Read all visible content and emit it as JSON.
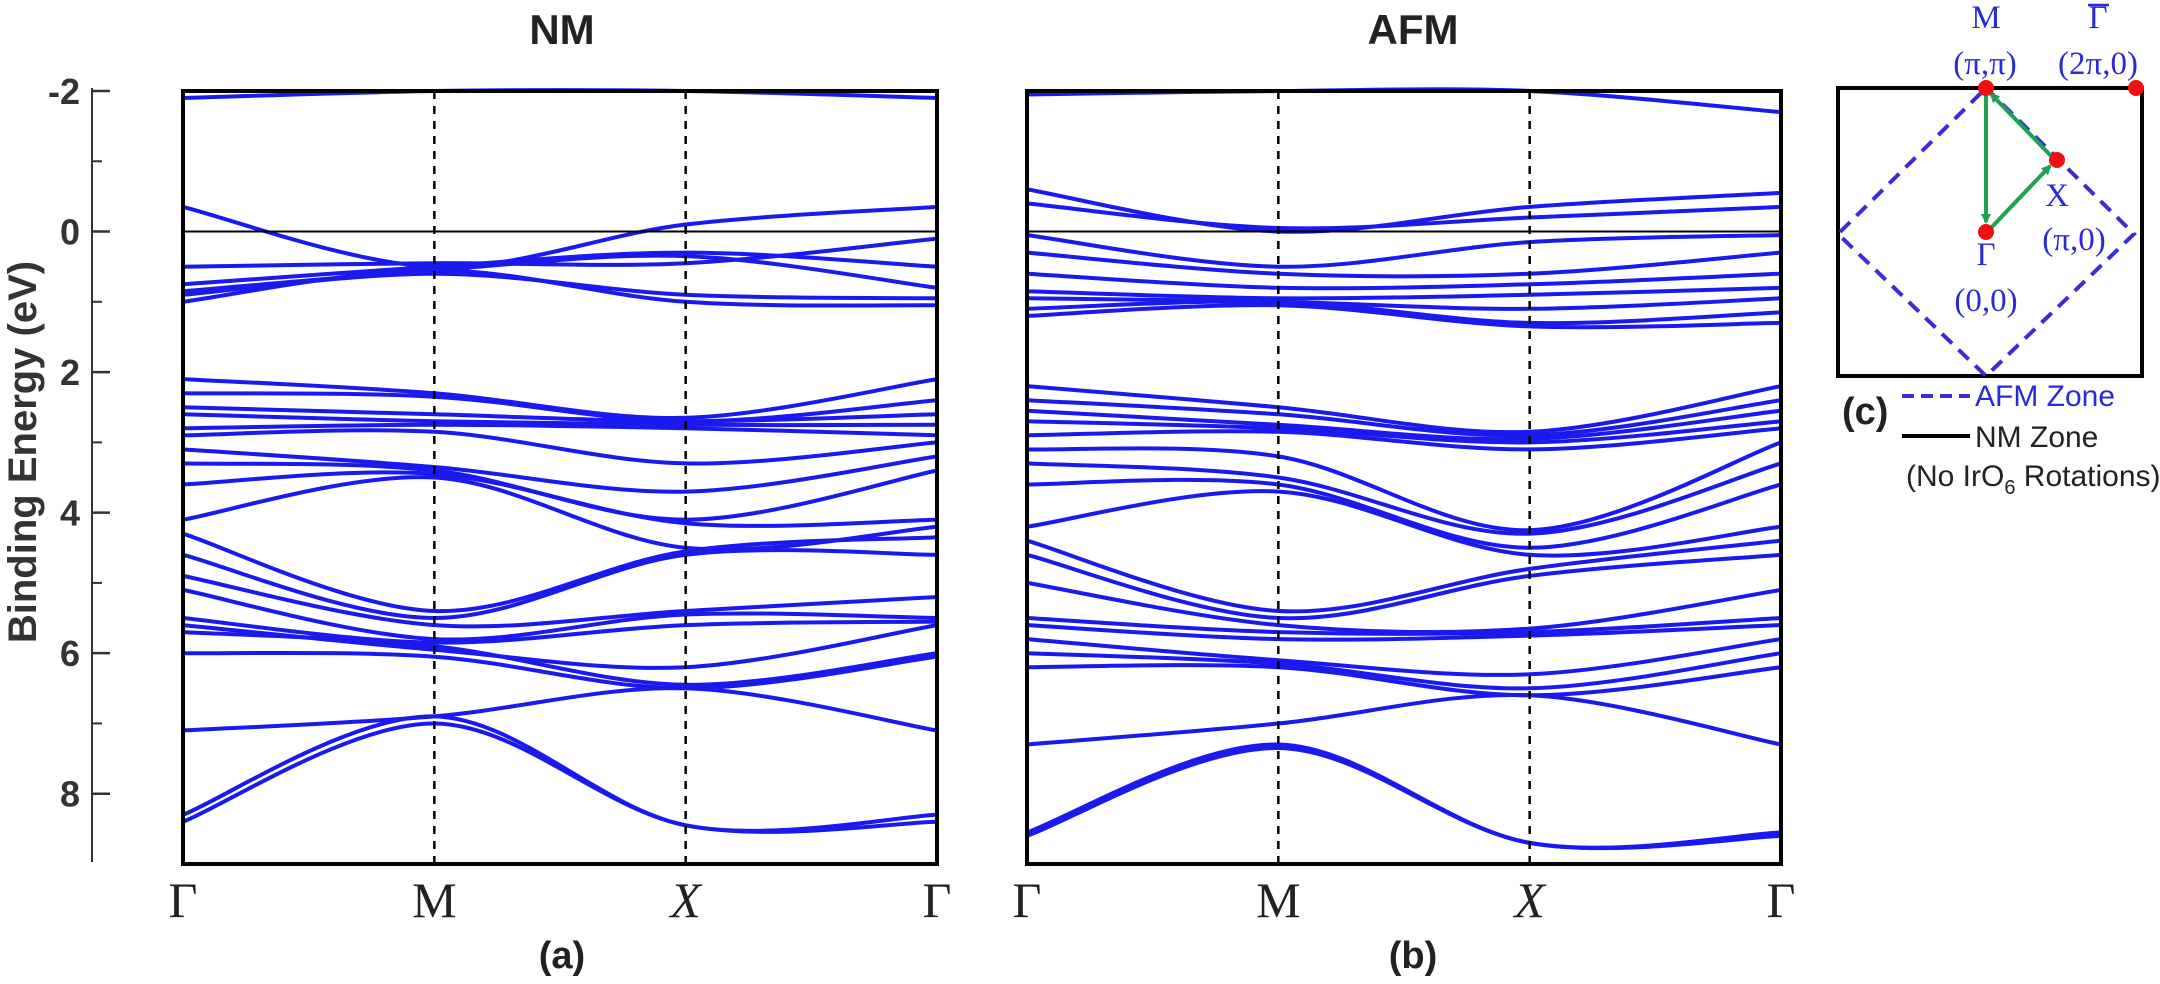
{
  "figure": {
    "panel_c_label": "(c)",
    "brillouin_zone": {
      "points": [
        {
          "id": "M",
          "name": "M",
          "coord": "(π,π)"
        },
        {
          "id": "Gbar",
          "name": "Γ",
          "coord": "(2π,0)"
        },
        {
          "id": "X",
          "name": "X",
          "coord": "(π,0)"
        },
        {
          "id": "G",
          "name": "Γ",
          "coord": "(0,0)"
        }
      ],
      "legend": {
        "afm_zone": "AFM Zone",
        "nm_zone": "NM Zone",
        "nm_note_prefix": "(No IrO",
        "nm_note_sub": "6",
        "nm_note_suffix": " Rotations)"
      },
      "colors": {
        "point": "#ee1111",
        "path": "#1aa350",
        "afm": "#3a2cd6",
        "nm": "#000000"
      }
    }
  },
  "chart_data": [
    {
      "type": "line",
      "title": "NM",
      "panel_label": "(a)",
      "ylabel": "Binding Energy (eV)",
      "ylim": [
        -2,
        9
      ],
      "y_inverted": true,
      "yticks": [
        "-2",
        "0",
        "2",
        "4",
        "6",
        "8"
      ],
      "kpath_labels": [
        "Γ",
        "M",
        "X",
        "Γ"
      ],
      "kpath_positions": [
        0,
        1,
        2,
        3
      ],
      "fermi_level": 0,
      "band_color": "#1a1aee",
      "bands": [
        [
          -1.9,
          -2.0,
          -2.0,
          -1.9
        ],
        [
          -0.35,
          0.5,
          -0.1,
          -0.35
        ],
        [
          0.5,
          0.45,
          0.45,
          0.1
        ],
        [
          0.75,
          0.5,
          0.3,
          0.5
        ],
        [
          0.85,
          0.55,
          0.35,
          0.8
        ],
        [
          0.9,
          0.6,
          0.9,
          0.95
        ],
        [
          1.0,
          0.55,
          1.0,
          1.05
        ],
        [
          2.1,
          2.3,
          2.65,
          2.1
        ],
        [
          2.3,
          2.35,
          2.7,
          2.4
        ],
        [
          2.5,
          2.6,
          2.7,
          2.6
        ],
        [
          2.6,
          2.7,
          2.75,
          2.75
        ],
        [
          2.8,
          2.75,
          2.8,
          2.9
        ],
        [
          2.9,
          2.85,
          3.3,
          3.0
        ],
        [
          3.1,
          3.35,
          3.7,
          3.2
        ],
        [
          3.3,
          3.4,
          4.1,
          3.4
        ],
        [
          3.6,
          3.45,
          4.15,
          4.1
        ],
        [
          4.1,
          3.5,
          4.5,
          4.2
        ],
        [
          4.3,
          5.4,
          4.55,
          4.35
        ],
        [
          4.6,
          5.5,
          4.6,
          4.6
        ],
        [
          4.9,
          5.6,
          5.4,
          5.2
        ],
        [
          5.1,
          5.8,
          5.45,
          5.5
        ],
        [
          5.5,
          5.85,
          5.6,
          5.55
        ],
        [
          5.6,
          5.95,
          6.2,
          5.6
        ],
        [
          5.7,
          5.9,
          6.45,
          6.0
        ],
        [
          6.0,
          6.05,
          6.5,
          6.05
        ],
        [
          7.1,
          6.9,
          6.5,
          7.1
        ],
        [
          8.3,
          6.9,
          8.45,
          8.3
        ],
        [
          8.4,
          7.0,
          8.45,
          8.4
        ]
      ]
    },
    {
      "type": "line",
      "title": "AFM",
      "panel_label": "(b)",
      "ylim": [
        -2,
        9
      ],
      "y_inverted": true,
      "kpath_labels": [
        "Γ",
        "M",
        "X",
        "Γ"
      ],
      "kpath_positions": [
        0,
        1,
        2,
        3
      ],
      "fermi_level": 0,
      "band_color": "#1a1aee",
      "bands": [
        [
          -1.95,
          -2.0,
          -2.0,
          -1.7
        ],
        [
          -0.6,
          0.0,
          -0.35,
          -0.55
        ],
        [
          -0.4,
          -0.05,
          -0.2,
          -0.35
        ],
        [
          0.05,
          0.5,
          0.15,
          0.05
        ],
        [
          0.3,
          0.6,
          0.6,
          0.3
        ],
        [
          0.6,
          0.8,
          0.75,
          0.6
        ],
        [
          0.85,
          0.95,
          0.9,
          0.8
        ],
        [
          0.95,
          1.0,
          1.1,
          0.95
        ],
        [
          1.1,
          1.0,
          1.3,
          1.15
        ],
        [
          1.2,
          1.05,
          1.35,
          1.3
        ],
        [
          2.2,
          2.5,
          2.85,
          2.2
        ],
        [
          2.4,
          2.6,
          2.9,
          2.4
        ],
        [
          2.55,
          2.75,
          2.95,
          2.55
        ],
        [
          2.7,
          2.8,
          3.0,
          2.7
        ],
        [
          2.9,
          2.85,
          3.1,
          2.8
        ],
        [
          3.1,
          3.2,
          4.25,
          3.0
        ],
        [
          3.3,
          3.5,
          4.3,
          3.3
        ],
        [
          3.6,
          3.6,
          4.5,
          3.6
        ],
        [
          4.2,
          3.7,
          4.6,
          4.2
        ],
        [
          4.4,
          5.4,
          4.8,
          4.4
        ],
        [
          4.6,
          5.5,
          4.9,
          4.6
        ],
        [
          5.0,
          5.6,
          5.65,
          5.1
        ],
        [
          5.5,
          5.7,
          5.7,
          5.5
        ],
        [
          5.6,
          5.8,
          5.75,
          5.6
        ],
        [
          5.8,
          6.1,
          6.3,
          5.8
        ],
        [
          6.0,
          6.15,
          6.5,
          6.0
        ],
        [
          6.2,
          6.2,
          6.6,
          6.2
        ],
        [
          7.3,
          7.0,
          6.6,
          7.3
        ],
        [
          8.55,
          7.3,
          8.7,
          8.55
        ],
        [
          8.6,
          7.35,
          8.7,
          8.6
        ]
      ]
    }
  ]
}
